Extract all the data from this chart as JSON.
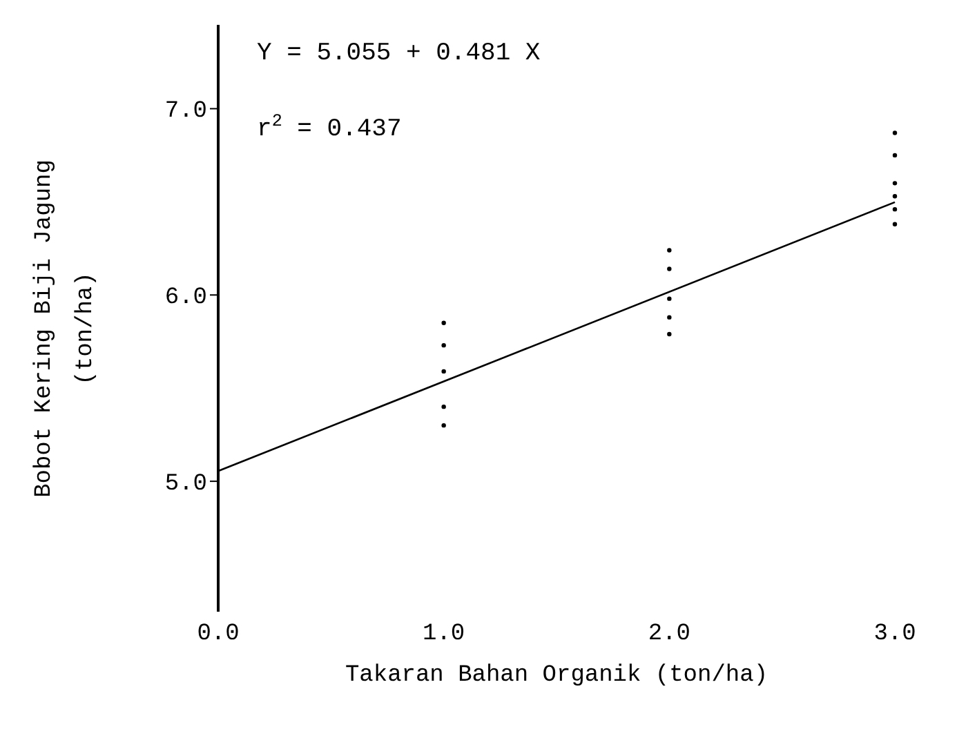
{
  "chart_data": {
    "type": "scatter",
    "xlabel": "Takaran Bahan Organik (ton/ha)",
    "ylabel": "Bobot Kering Biji Jagung\n(ton/ha)",
    "annotations": [
      "Y = 5.055 + 0.481 X",
      "r$^{2}$ = 0.437"
    ],
    "xlim": [
      0,
      3
    ],
    "xticks": [
      {
        "value": 0,
        "label": "0.0"
      },
      {
        "value": 1,
        "label": "1.0"
      },
      {
        "value": 2,
        "label": "2.0"
      },
      {
        "value": 3,
        "label": "3.0"
      }
    ],
    "ylim": [
      4.3,
      7.45
    ],
    "yticks": [
      {
        "value": 5,
        "label": "5.0"
      },
      {
        "value": 6,
        "label": "6.0"
      },
      {
        "value": 7,
        "label": "7.0"
      }
    ],
    "grid": false,
    "legend": false,
    "marker": "circle",
    "series": [
      {
        "color": "#000000",
        "x": [
          1,
          1,
          1,
          1,
          1,
          2,
          2,
          2,
          2,
          2,
          3,
          3,
          3,
          3,
          3,
          3
        ],
        "values": [
          5.85,
          5.73,
          5.59,
          5.4,
          5.3,
          6.24,
          6.14,
          5.98,
          5.88,
          5.79,
          6.87,
          6.75,
          6.6,
          6.53,
          6.46,
          6.38
        ]
      },
      {
        "type": "line",
        "color": "#000000",
        "line_style": "solid",
        "marker": "none",
        "x": [
          0,
          3
        ],
        "values": [
          5.055,
          6.498
        ]
      }
    ]
  }
}
